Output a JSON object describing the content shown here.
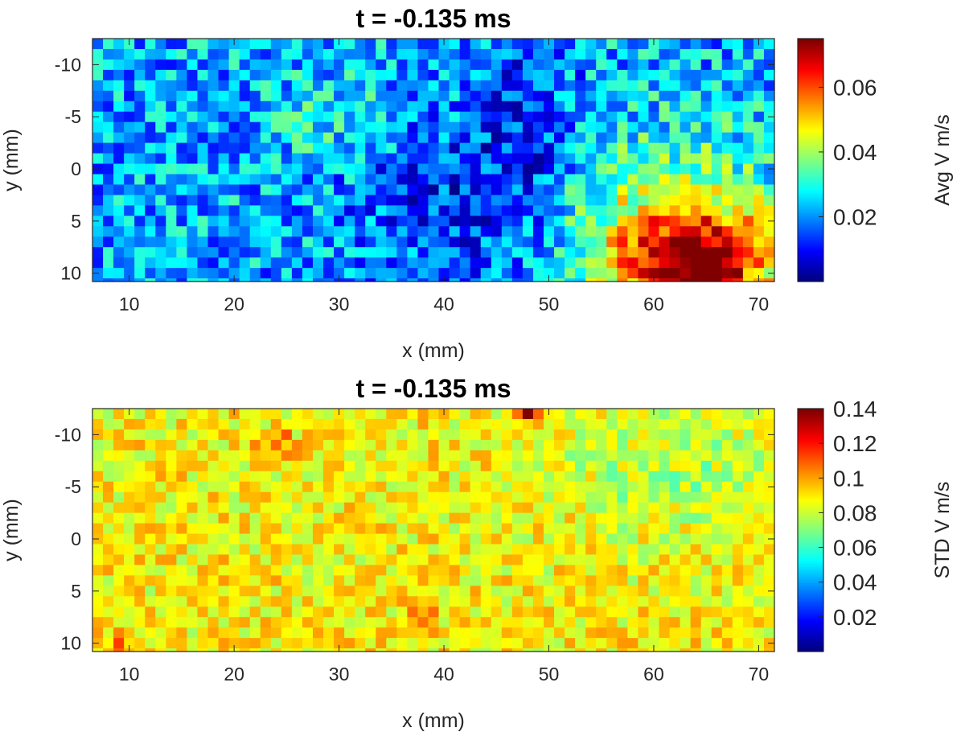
{
  "chart_data": [
    {
      "type": "heatmap",
      "title": "t = -0.135 ms",
      "xlabel": "x (mm)",
      "ylabel": "y (mm)",
      "xlim": [
        6.5,
        71.5
      ],
      "ylim": [
        -12.5,
        10.8
      ],
      "y_reversed": true,
      "xticks": [
        10,
        20,
        30,
        40,
        50,
        60,
        70
      ],
      "yticks": [
        -10,
        -5,
        0,
        5,
        10
      ],
      "grid": 1.0,
      "colormap": "jet",
      "colorbar": {
        "label": "Avg V m/s",
        "clim": [
          0.0,
          0.075
        ],
        "ticks": [
          0.02,
          0.04,
          0.06
        ],
        "tick_labels": [
          "0.02",
          "0.04",
          "0.06"
        ]
      },
      "field": {
        "base": 0.022,
        "noise": 0.012,
        "seed": 7,
        "blobs": [
          {
            "x": 64,
            "y": 9.5,
            "sx": 5.5,
            "sy": 3.5,
            "amp": 0.045
          },
          {
            "x": 62,
            "y": 5,
            "sx": 8,
            "sy": 6,
            "amp": 0.02
          },
          {
            "x": 30,
            "y": -5,
            "sx": 4,
            "sy": 3,
            "amp": 0.008
          },
          {
            "x": 40,
            "y": 3,
            "sx": 6,
            "sy": 6,
            "amp": -0.01
          },
          {
            "x": 48,
            "y": -3,
            "sx": 3,
            "sy": 8,
            "amp": -0.01
          }
        ]
      }
    },
    {
      "type": "heatmap",
      "title": "t = -0.135 ms",
      "xlabel": "x (mm)",
      "ylabel": "y (mm)",
      "xlim": [
        6.5,
        71.5
      ],
      "ylim": [
        -12.5,
        10.8
      ],
      "y_reversed": true,
      "xticks": [
        10,
        20,
        30,
        40,
        50,
        60,
        70
      ],
      "yticks": [
        -10,
        -5,
        0,
        5,
        10
      ],
      "grid": 1.0,
      "colormap": "jet",
      "colorbar": {
        "label": "STD V m/s",
        "clim": [
          0.0,
          0.14
        ],
        "ticks": [
          0.02,
          0.04,
          0.06,
          0.08,
          0.1,
          0.12,
          0.14
        ],
        "tick_labels": [
          "0.02",
          "0.04",
          "0.06",
          "0.08",
          "0.1",
          "0.12",
          "0.14"
        ]
      },
      "field": {
        "base": 0.088,
        "noise": 0.014,
        "seed": 19,
        "blobs": [
          {
            "x": 24,
            "y": -9,
            "sx": 1,
            "sy": 1,
            "amp": 0.03
          },
          {
            "x": 37.5,
            "y": 7.5,
            "sx": 1,
            "sy": 1,
            "amp": 0.03
          },
          {
            "x": 48,
            "y": -12,
            "sx": 1,
            "sy": 0.7,
            "amp": 0.05
          },
          {
            "x": 9,
            "y": 10.5,
            "sx": 0.7,
            "sy": 0.7,
            "amp": 0.04
          },
          {
            "x": 62,
            "y": -7,
            "sx": 8,
            "sy": 5,
            "amp": -0.012
          }
        ]
      }
    }
  ]
}
